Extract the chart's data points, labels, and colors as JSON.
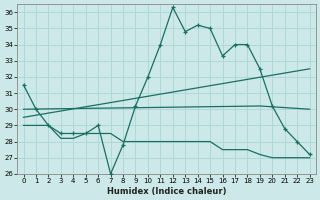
{
  "xlabel": "Humidex (Indice chaleur)",
  "xlim": [
    -0.5,
    23.5
  ],
  "ylim": [
    26,
    36.5
  ],
  "yticks": [
    26,
    27,
    28,
    29,
    30,
    31,
    32,
    33,
    34,
    35,
    36
  ],
  "xticks": [
    0,
    1,
    2,
    3,
    4,
    5,
    6,
    7,
    8,
    9,
    10,
    11,
    12,
    13,
    14,
    15,
    16,
    17,
    18,
    19,
    20,
    21,
    22,
    23
  ],
  "bg_color": "#cce8e8",
  "grid_color": "#b0d8d8",
  "line_color": "#1a6e62",
  "line1_x": [
    0,
    1,
    2,
    3,
    4,
    5,
    6,
    7,
    8,
    9,
    10,
    11,
    12,
    13,
    14,
    15,
    16,
    17,
    18,
    19,
    20,
    21,
    22,
    23
  ],
  "line1_y": [
    31.5,
    30.0,
    29.0,
    28.5,
    28.5,
    28.5,
    29.0,
    26.0,
    27.8,
    30.2,
    32.0,
    34.0,
    36.3,
    34.8,
    35.2,
    35.0,
    33.3,
    34.0,
    34.0,
    32.5,
    30.2,
    28.8,
    28.0,
    27.2
  ],
  "line2_x": [
    0,
    1,
    2,
    3,
    4,
    5,
    6,
    7,
    8,
    9,
    10,
    11,
    12,
    13,
    14,
    15,
    16,
    17,
    18,
    19,
    20,
    21,
    22,
    23
  ],
  "line2_y": [
    29.0,
    29.0,
    29.0,
    28.2,
    28.2,
    28.5,
    28.5,
    28.5,
    28.0,
    28.0,
    28.0,
    28.0,
    28.0,
    28.0,
    28.0,
    28.0,
    27.5,
    27.5,
    27.5,
    27.2,
    27.0,
    27.0,
    27.0,
    27.0
  ],
  "line3_x": [
    0,
    23
  ],
  "line3_y": [
    29.5,
    32.5
  ],
  "line4_x": [
    0,
    19,
    23
  ],
  "line4_y": [
    30.0,
    30.2,
    30.0
  ]
}
